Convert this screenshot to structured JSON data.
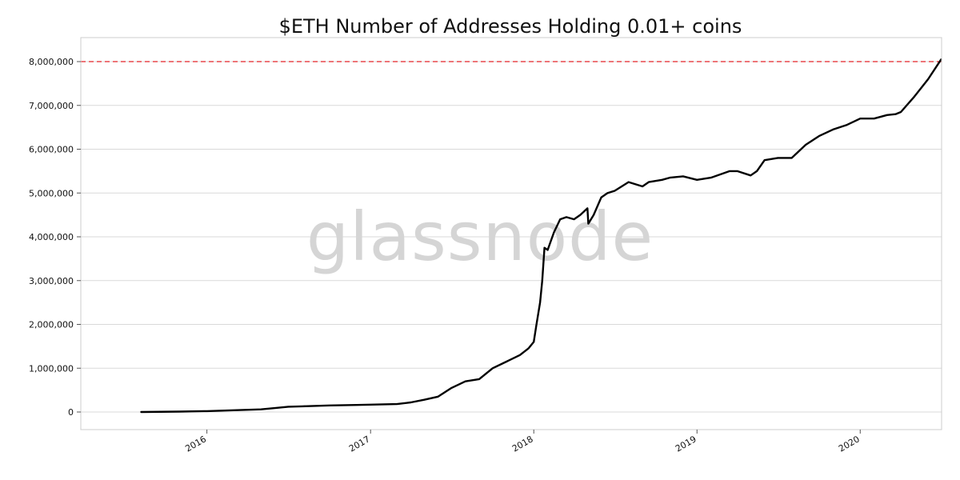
{
  "chart_data": {
    "type": "line",
    "title": "$ETH Number of Addresses Holding 0.01+ coins",
    "xlabel": "",
    "ylabel": "",
    "watermark": "glassnode",
    "x_ticks": [
      "2016",
      "2017",
      "2018",
      "2019",
      "2020"
    ],
    "y_ticks": [
      "0",
      "1,000,000",
      "2,000,000",
      "3,000,000",
      "4,000,000",
      "5,000,000",
      "6,000,000",
      "7,000,000",
      "8,000,000"
    ],
    "ylim": [
      0,
      8000000
    ],
    "xlim": [
      "2015-03-25",
      "2020-07-01"
    ],
    "grid": true,
    "reference_line": {
      "y": 8000000,
      "color": "#e8474c",
      "style": "dashed"
    },
    "colors": {
      "line": "#000000",
      "grid": "#d9d9d9",
      "axes": "#cccccc"
    },
    "series": [
      {
        "x": [
          "2015-08-07",
          "2015-11-01",
          "2016-01-01",
          "2016-03-01",
          "2016-05-01",
          "2016-06-01",
          "2016-07-01",
          "2016-08-01",
          "2016-10-01",
          "2016-12-01",
          "2017-03-01",
          "2017-04-01",
          "2017-05-01",
          "2017-06-01",
          "2017-07-01",
          "2017-08-01",
          "2017-09-01",
          "2017-10-01",
          "2017-11-01",
          "2017-12-01",
          "2017-12-20",
          "2018-01-01",
          "2018-01-07",
          "2018-01-15",
          "2018-01-20",
          "2018-01-25",
          "2018-02-01",
          "2018-02-15",
          "2018-03-01",
          "2018-03-15",
          "2018-04-01",
          "2018-04-15",
          "2018-05-01",
          "2018-05-03",
          "2018-05-15",
          "2018-06-01",
          "2018-06-15",
          "2018-07-01",
          "2018-08-01",
          "2018-09-01",
          "2018-09-15",
          "2018-10-15",
          "2018-11-01",
          "2018-12-01",
          "2019-01-01",
          "2019-02-01",
          "2019-03-15",
          "2019-04-01",
          "2019-05-01",
          "2019-05-15",
          "2019-06-01",
          "2019-07-01",
          "2019-08-01",
          "2019-09-01",
          "2019-10-01",
          "2019-11-01",
          "2019-12-01",
          "2020-01-01",
          "2020-02-01",
          "2020-03-01",
          "2020-03-20",
          "2020-04-01",
          "2020-05-01",
          "2020-06-01",
          "2020-06-30"
        ],
        "y": [
          0,
          10000,
          20000,
          40000,
          60000,
          90000,
          120000,
          130000,
          150000,
          160000,
          180000,
          220000,
          280000,
          350000,
          550000,
          700000,
          750000,
          1000000,
          1150000,
          1300000,
          1450000,
          1600000,
          2000000,
          2500000,
          3000000,
          3750000,
          3700000,
          4100000,
          4400000,
          4450000,
          4400000,
          4500000,
          4650000,
          4300000,
          4500000,
          4900000,
          5000000,
          5050000,
          5250000,
          5150000,
          5250000,
          5300000,
          5350000,
          5380000,
          5300000,
          5350000,
          5500000,
          5500000,
          5400000,
          5500000,
          5750000,
          5800000,
          5800000,
          6100000,
          6300000,
          6450000,
          6550000,
          6700000,
          6700000,
          6780000,
          6800000,
          6850000,
          7200000,
          7600000,
          8050000
        ]
      }
    ]
  }
}
